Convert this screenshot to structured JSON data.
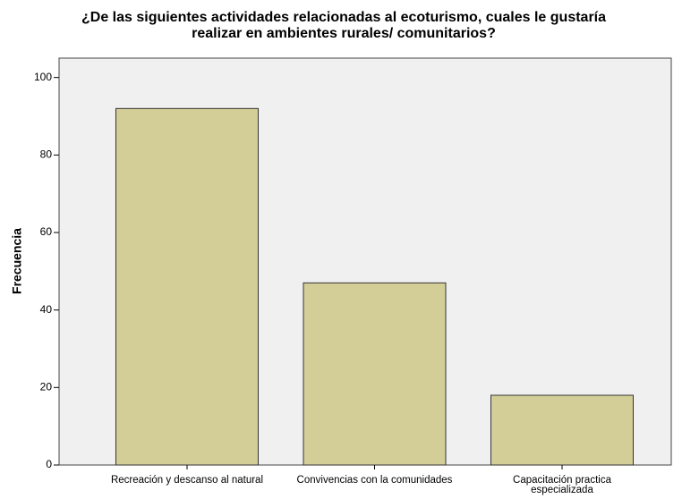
{
  "chart_data": {
    "type": "bar",
    "title": [
      "¿De las siguientes actividades relacionadas al ecoturismo, cuales le gustaría",
      "realizar en ambientes rurales/ comunitarios?"
    ],
    "ylabel": "Frecuencia",
    "categories": [
      "Recreación y descanso al natural",
      "Convivencias con la comunidades",
      "Capacitación practica especializada"
    ],
    "values": [
      92,
      47,
      18
    ],
    "color": "#d3ce97",
    "ylim": [
      0,
      105
    ],
    "yticks": [
      0,
      20,
      40,
      60,
      80,
      100
    ]
  }
}
